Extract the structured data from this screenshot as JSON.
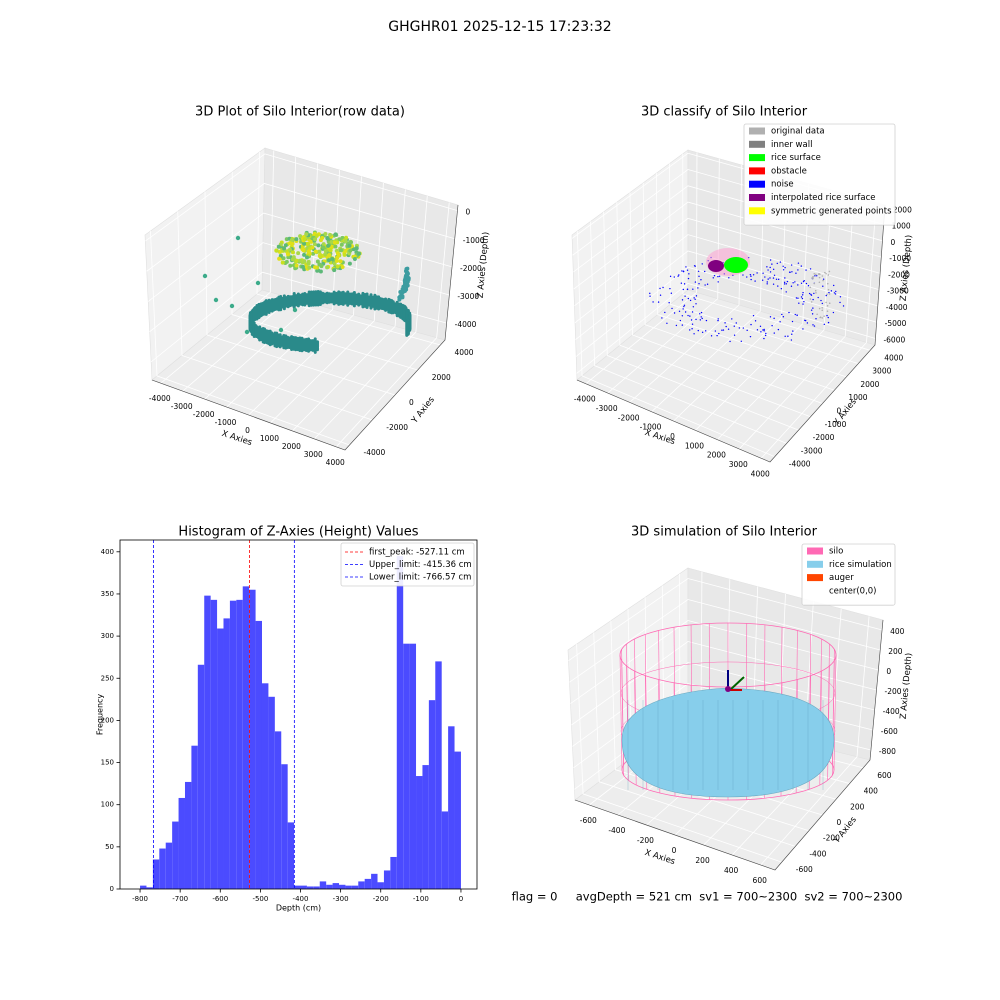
{
  "title": "GHGHR01 2025-12-15 17:23:32",
  "footer": "flag = 0     avgDepth = 521 cm  sv1 = 700~2300  sv2 = 700~2300",
  "chart_data": [
    {
      "type": "scatter3d",
      "title": "3D Plot of Silo Interior(row data)",
      "xlabel": "X Axies",
      "ylabel": "Y Axies",
      "zlabel": "Z Axies (Depth)",
      "xlim": [
        -4400,
        4400
      ],
      "ylim": [
        -4400,
        4400
      ],
      "zlim": [
        -4600,
        200
      ],
      "xticks": [
        -4000,
        -3000,
        -2000,
        -1000,
        0,
        1000,
        2000,
        3000,
        4000
      ],
      "yticks": [
        -4000,
        -2000,
        0,
        2000,
        4000
      ],
      "zticks": [
        -4000,
        -3000,
        -2000,
        -1000,
        0
      ]
    },
    {
      "type": "scatter3d",
      "title": "3D classify of Silo Interior",
      "xlabel": "X Axies",
      "ylabel": "Y Axies",
      "zlabel": "Z Axies (Depth)",
      "xlim": [
        -4400,
        4400
      ],
      "ylim": [
        -4400,
        4400
      ],
      "zlim": [
        -6400,
        2200
      ],
      "xticks": [
        -4000,
        -3000,
        -2000,
        -1000,
        0,
        1000,
        2000,
        3000,
        4000
      ],
      "yticks": [
        -4000,
        -3000,
        -2000,
        -1000,
        0,
        1000,
        2000,
        3000,
        4000
      ],
      "zticks": [
        -6000,
        -5000,
        -4000,
        -3000,
        -2000,
        -1000,
        0,
        1000,
        2000
      ],
      "legend": "upper right",
      "series": [
        {
          "name": "original data",
          "color": "#b0b0b0"
        },
        {
          "name": "inner wall",
          "color": "#808080"
        },
        {
          "name": "rice surface",
          "color": "#00ff00"
        },
        {
          "name": "obstacle",
          "color": "#ff0000"
        },
        {
          "name": "noise",
          "color": "#0000ff"
        },
        {
          "name": "interpolated rice surface",
          "color": "#800080"
        },
        {
          "name": "symmetric generated points",
          "color": "#ffff00"
        }
      ]
    },
    {
      "type": "histogram",
      "title": "Histogram of Z-Axies (Height) Values",
      "xlabel": "Depth (cm)",
      "ylabel": "Frequency",
      "color": "#4b4bff",
      "bins": [
        -800,
        -784,
        -768,
        -752,
        -736,
        -720,
        -704,
        -688,
        -672,
        -656,
        -640,
        -624,
        -608,
        -592,
        -576,
        -560,
        -544,
        -528,
        -512,
        -496,
        -480,
        -464,
        -448,
        -432,
        -416,
        -400,
        -384,
        -368,
        -352,
        -336,
        -320,
        -304,
        -288,
        -272,
        -256,
        -240,
        -224,
        -208,
        -192,
        -176,
        -160,
        -144,
        -128,
        -112,
        -96,
        -80,
        -64,
        -48,
        -32,
        -16,
        0
      ],
      "values": [
        4,
        2,
        35,
        48,
        55,
        80,
        108,
        127,
        170,
        266,
        348,
        343,
        309,
        321,
        342,
        343,
        359,
        355,
        318,
        244,
        228,
        187,
        148,
        79,
        4,
        4,
        3,
        3,
        9,
        5,
        7,
        5,
        4,
        4,
        9,
        12,
        18,
        8,
        22,
        38,
        395,
        291,
        291,
        134,
        147,
        224,
        270,
        92,
        193,
        163
      ],
      "xlim": [
        -850,
        40
      ],
      "ylim": [
        0,
        414
      ],
      "xticks": [
        -800,
        -700,
        -600,
        -500,
        -400,
        -300,
        -200,
        -100,
        0
      ],
      "yticks": [
        0,
        50,
        100,
        150,
        200,
        250,
        300,
        350,
        400
      ],
      "legend": "upper right",
      "lines": [
        {
          "name": "first_peak: -527.11 cm",
          "value": -527.11,
          "color": "#ff0000"
        },
        {
          "name": "Upper_limit: -415.36 cm",
          "value": -415.36,
          "color": "#0000ff"
        },
        {
          "name": "Lower_limit: -766.57 cm",
          "value": -766.57,
          "color": "#0000ff"
        }
      ]
    },
    {
      "type": "surface3d",
      "title": "3D simulation of Silo Interior",
      "xlabel": "X Axies",
      "ylabel": "Y Axies",
      "zlabel": "Z Axies (Depth)",
      "xlim": [
        -700,
        700
      ],
      "ylim": [
        -700,
        700
      ],
      "zlim": [
        -900,
        500
      ],
      "xticks": [
        -600,
        -400,
        -200,
        0,
        200,
        400,
        600
      ],
      "yticks": [
        -600,
        -400,
        -200,
        0,
        200,
        400,
        600
      ],
      "zticks": [
        -800,
        -600,
        -400,
        -200,
        0,
        200,
        400
      ],
      "legend": "upper right",
      "series": [
        {
          "name": "silo",
          "color": "#ff69b4"
        },
        {
          "name": "rice simulation",
          "color": "#87ceeb"
        },
        {
          "name": "auger",
          "color": "#ff4500"
        },
        {
          "name": "center(0,0)",
          "color": "#ffffff"
        }
      ]
    }
  ]
}
